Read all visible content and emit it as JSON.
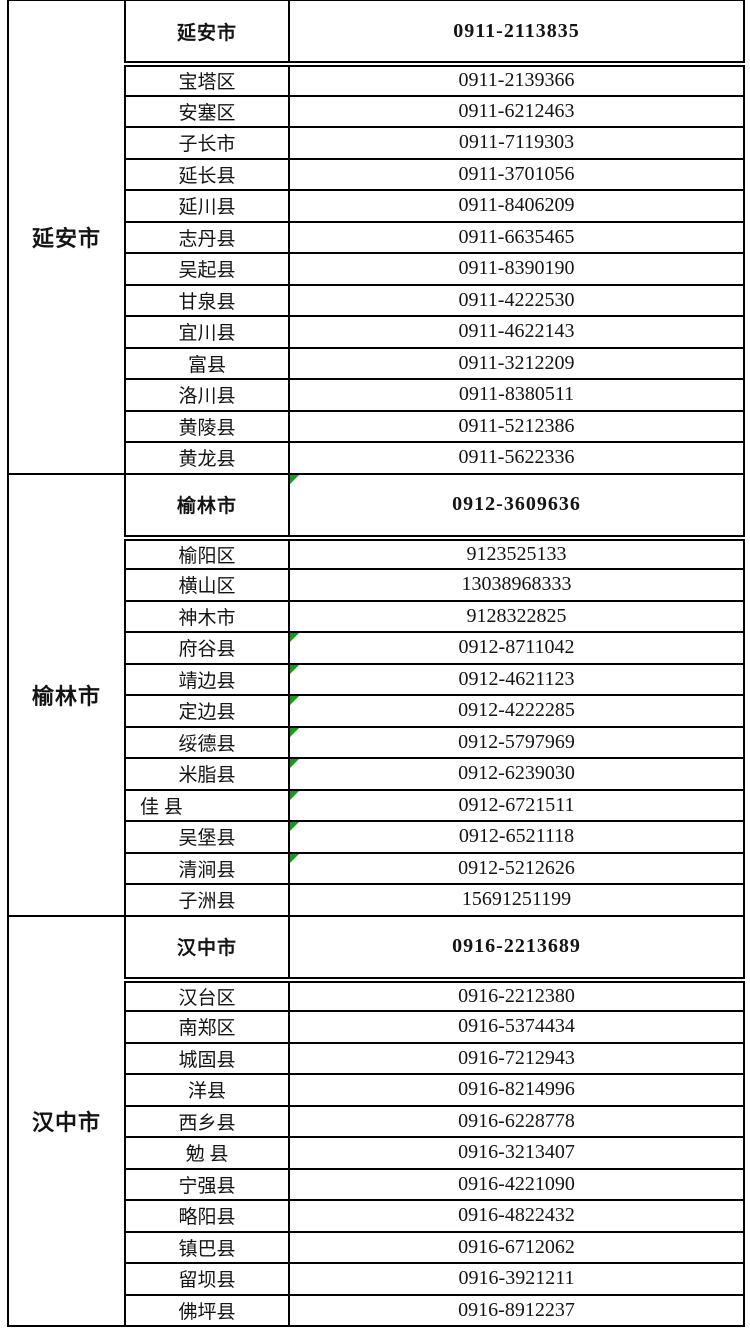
{
  "table": {
    "colors": {
      "border": "#000000",
      "marker_green": "#1a991a",
      "background": "#ffffff",
      "text": "#141414"
    },
    "columns": {
      "group_width": 117,
      "district_width": 164,
      "phone_width": 455
    },
    "sections": [
      {
        "group": "延安市",
        "header": {
          "name": "延安市",
          "phone": "0911-2113835",
          "marker": false
        },
        "rows": [
          {
            "name": "宝塔区",
            "phone": "0911-2139366"
          },
          {
            "name": "安塞区",
            "phone": "0911-6212463"
          },
          {
            "name": "子长市",
            "phone": "0911-7119303"
          },
          {
            "name": "延长县",
            "phone": "0911-3701056"
          },
          {
            "name": "延川县",
            "phone": "0911-8406209"
          },
          {
            "name": "志丹县",
            "phone": "0911-6635465"
          },
          {
            "name": "吴起县",
            "phone": "0911-8390190"
          },
          {
            "name": "甘泉县",
            "phone": "0911-4222530"
          },
          {
            "name": "宜川县",
            "phone": "0911-4622143"
          },
          {
            "name": "富县",
            "phone": "0911-3212209"
          },
          {
            "name": "洛川县",
            "phone": "0911-8380511"
          },
          {
            "name": "黄陵县",
            "phone": "0911-5212386"
          },
          {
            "name": "黄龙县",
            "phone": "0911-5622336"
          }
        ]
      },
      {
        "group": "榆林市",
        "header": {
          "name": "榆林市",
          "phone": "0912-3609636",
          "marker": true
        },
        "rows": [
          {
            "name": "榆阳区",
            "phone": "9123525133"
          },
          {
            "name": "横山区",
            "phone": "13038968333"
          },
          {
            "name": "神木市",
            "phone": "9128322825"
          },
          {
            "name": "府谷县",
            "phone": "0912-8711042",
            "marker": true
          },
          {
            "name": "靖边县",
            "phone": "0912-4621123",
            "marker": true
          },
          {
            "name": "定边县",
            "phone": "0912-4222285",
            "marker": true
          },
          {
            "name": "绥德县",
            "phone": "0912-5797969",
            "marker": true
          },
          {
            "name": "米脂县",
            "phone": "0912-6239030",
            "marker": true
          },
          {
            "name": "佳 县",
            "phone": "0912-6721511",
            "marker": true,
            "name_align": "left"
          },
          {
            "name": "吴堡县",
            "phone": "0912-6521118",
            "marker": true
          },
          {
            "name": "清涧县",
            "phone": "0912-5212626",
            "marker": true
          },
          {
            "name": "子洲县",
            "phone": "15691251199"
          }
        ]
      },
      {
        "group": "汉中市",
        "header": {
          "name": "汉中市",
          "phone": "0916-2213689",
          "marker": false
        },
        "rows": [
          {
            "name": "汉台区",
            "phone": "0916-2212380"
          },
          {
            "name": "南郑区",
            "phone": "0916-5374434"
          },
          {
            "name": "城固县",
            "phone": "0916-7212943"
          },
          {
            "name": "洋县",
            "phone": "0916-8214996"
          },
          {
            "name": "西乡县",
            "phone": "0916-6228778"
          },
          {
            "name": "勉 县",
            "phone": "0916-3213407"
          },
          {
            "name": "宁强县",
            "phone": "0916-4221090"
          },
          {
            "name": "略阳县",
            "phone": "0916-4822432"
          },
          {
            "name": "镇巴县",
            "phone": "0916-6712062"
          },
          {
            "name": "留坝县",
            "phone": "0916-3921211"
          },
          {
            "name": "佛坪县",
            "phone": "0916-8912237"
          }
        ]
      }
    ]
  }
}
